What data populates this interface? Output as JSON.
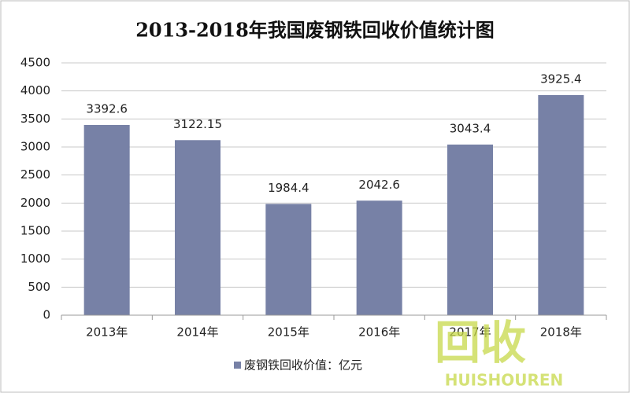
{
  "chart_data": {
    "type": "bar",
    "title": "2013-2018年我国废钢铁回收价值统计图",
    "categories": [
      "2013年",
      "2014年",
      "2015年",
      "2016年",
      "2017年",
      "2018年"
    ],
    "series": [
      {
        "name": "废钢铁回收价值：亿元",
        "color": "#7781a6",
        "values": [
          3392.6,
          3122.15,
          1984.4,
          2042.6,
          3043.4,
          3925.4
        ]
      }
    ],
    "ylim": [
      0,
      4500
    ],
    "yticks": [
      0,
      500,
      1000,
      1500,
      2000,
      2500,
      3000,
      3500,
      4000,
      4500
    ],
    "grid": true,
    "legend": "bottom",
    "watermark": {
      "text": "回收",
      "subtext": "HUISHOUREN"
    }
  }
}
